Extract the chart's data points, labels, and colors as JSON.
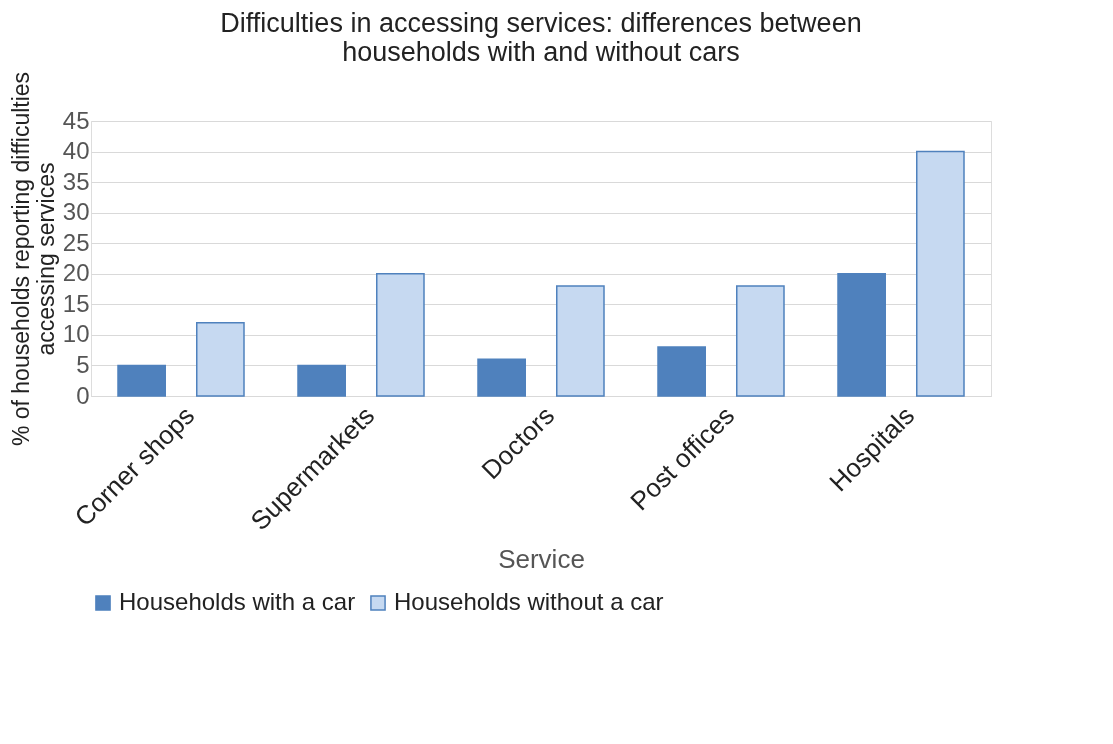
{
  "chart_data": {
    "type": "bar",
    "title": "Difficulties in accessing services: differences between households with and without cars",
    "xlabel": "Service",
    "ylabel": "% of households reporting difficulties accessing services",
    "categories": [
      "Corner shops",
      "Supermarkets",
      "Doctors",
      "Post offices",
      "Hospitals"
    ],
    "series": [
      {
        "name": "Households with a car",
        "color": "#4f81bd",
        "values": [
          5,
          5,
          6,
          8,
          20
        ]
      },
      {
        "name": "Households without a car",
        "color": "#c6d9f1",
        "values": [
          12,
          20,
          18,
          18,
          40
        ]
      }
    ],
    "ylim": [
      0,
      45
    ],
    "yticks": [
      0,
      5,
      10,
      15,
      20,
      25,
      30,
      35,
      40,
      45
    ],
    "grid": "y",
    "legend": "bottom"
  }
}
